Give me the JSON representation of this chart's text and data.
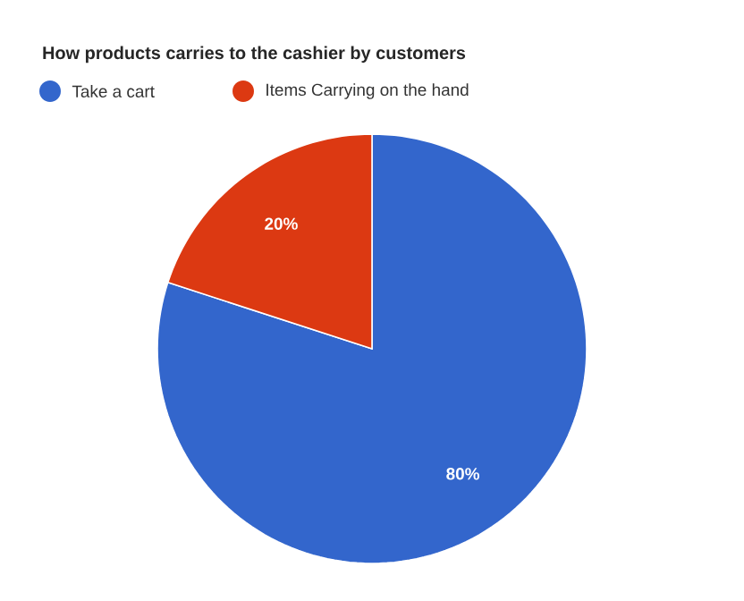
{
  "chart_data": {
    "type": "pie",
    "title": "How products carries to the cashier by customers",
    "categories": [
      "Take a cart",
      "Items Carrying on the hand"
    ],
    "values": [
      80,
      20
    ],
    "colors": [
      "#3366cc",
      "#dc3912"
    ],
    "value_labels": [
      "80%",
      "20%"
    ],
    "legend": "top"
  }
}
